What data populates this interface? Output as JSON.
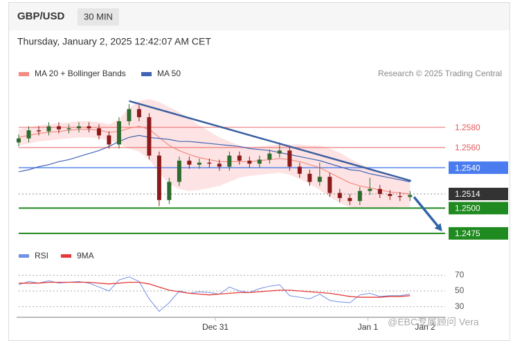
{
  "header": {
    "title": "GBP/USD",
    "timeframe": "30 MIN",
    "date": "Thursday, January 2, 2025 12:42:07 AM CET",
    "credit": "Research © 2025 Trading Central",
    "watermark": "@EBC专属顾问 Vera"
  },
  "chart_data": [
    {
      "type": "candlestick",
      "up_color": "#2e6b2e",
      "down_color": "#8b1a1a",
      "open": [
        1.2565,
        1.2569,
        1.2577,
        1.2576,
        1.2581,
        1.2578,
        1.2579,
        1.2581,
        1.2579,
        1.2572,
        1.2563,
        1.2586,
        1.2598,
        1.259,
        1.2552,
        1.2508,
        1.2526,
        1.2547,
        1.2543,
        1.2545,
        1.2544,
        1.2541,
        1.2552,
        1.2547,
        1.2544,
        1.2548,
        1.2554,
        1.2557,
        1.2541,
        1.2534,
        1.2526,
        1.2531,
        1.2515,
        1.251,
        1.2507,
        1.2517,
        1.2519,
        1.2514,
        1.2512,
        1.2511
      ],
      "high": [
        1.2573,
        1.2581,
        1.2581,
        1.2585,
        1.2585,
        1.2583,
        1.2585,
        1.2585,
        1.2583,
        1.2576,
        1.259,
        1.2603,
        1.2602,
        1.2594,
        1.2556,
        1.253,
        1.2551,
        1.2551,
        1.2549,
        1.2549,
        1.2548,
        1.2556,
        1.2556,
        1.2551,
        1.2552,
        1.2558,
        1.2565,
        1.2561,
        1.2545,
        1.2538,
        1.2545,
        1.2535,
        1.2519,
        1.2514,
        1.2521,
        1.253,
        1.2523,
        1.2518,
        1.2516,
        1.2517
      ],
      "low": [
        1.2561,
        1.2565,
        1.2572,
        1.2572,
        1.2574,
        1.2574,
        1.2575,
        1.2575,
        1.2568,
        1.2559,
        1.2559,
        1.2582,
        1.2586,
        1.2548,
        1.2502,
        1.2504,
        1.2522,
        1.2539,
        1.2539,
        1.254,
        1.2537,
        1.2537,
        1.2543,
        1.254,
        1.254,
        1.2544,
        1.255,
        1.2537,
        1.253,
        1.2522,
        1.2522,
        1.2511,
        1.2506,
        1.2503,
        1.2503,
        1.2513,
        1.251,
        1.2508,
        1.2507,
        1.2507
      ],
      "close": [
        1.2569,
        1.2577,
        1.2576,
        1.2581,
        1.2578,
        1.2579,
        1.2581,
        1.2579,
        1.2572,
        1.2563,
        1.2586,
        1.2598,
        1.259,
        1.2552,
        1.2508,
        1.2526,
        1.2547,
        1.2543,
        1.2545,
        1.2544,
        1.2541,
        1.2552,
        1.2547,
        1.2544,
        1.2548,
        1.2554,
        1.2557,
        1.2541,
        1.2534,
        1.2526,
        1.2531,
        1.2515,
        1.251,
        1.2507,
        1.2517,
        1.2519,
        1.2514,
        1.2512,
        1.2511,
        1.2513
      ],
      "series": [
        {
          "name": "MA 20 + Bollinger Bands",
          "color": "#f28b82",
          "band_color": "#fde3e3",
          "values": [
            1.257,
            1.2572,
            1.2574,
            1.2575,
            1.2576,
            1.2577,
            1.2578,
            1.2578,
            1.2577,
            1.2575,
            1.2576,
            1.2579,
            1.2581,
            1.2578,
            1.257,
            1.2562,
            1.2557,
            1.2553,
            1.255,
            1.2548,
            1.2546,
            1.2546,
            1.2546,
            1.2546,
            1.2547,
            1.2548,
            1.2549,
            1.2548,
            1.2546,
            1.2543,
            1.254,
            1.2535,
            1.253,
            1.2525,
            1.2522,
            1.252,
            1.2518,
            1.2516,
            1.2515,
            1.2514
          ],
          "upper": [
            1.2578,
            1.258,
            1.2582,
            1.2583,
            1.2584,
            1.2585,
            1.2586,
            1.2586,
            1.2585,
            1.2583,
            1.2588,
            1.2599,
            1.2606,
            1.2608,
            1.2605,
            1.26,
            1.2595,
            1.2589,
            1.2582,
            1.2576,
            1.257,
            1.2566,
            1.2562,
            1.256,
            1.2561,
            1.2562,
            1.2563,
            1.2563,
            1.2563,
            1.2562,
            1.2562,
            1.2559,
            1.2555,
            1.2549,
            1.2544,
            1.254,
            1.2536,
            1.2532,
            1.2529,
            1.2527
          ],
          "lower": [
            1.2562,
            1.2564,
            1.2566,
            1.2567,
            1.2568,
            1.2569,
            1.257,
            1.257,
            1.2569,
            1.2567,
            1.2564,
            1.2559,
            1.2556,
            1.2548,
            1.2535,
            1.2524,
            1.2519,
            1.2517,
            1.2518,
            1.252,
            1.2522,
            1.2526,
            1.253,
            1.2532,
            1.2533,
            1.2534,
            1.2535,
            1.2533,
            1.2529,
            1.2524,
            1.2518,
            1.2511,
            1.2505,
            1.2501,
            1.25,
            1.25,
            1.25,
            1.25,
            1.2501,
            1.2501
          ]
        },
        {
          "name": "MA 50",
          "color": "#3f63b5",
          "values": [
            1.2536,
            1.2538,
            1.2541,
            1.2543,
            1.2546,
            1.2548,
            1.2551,
            1.2554,
            1.2557,
            1.2561,
            1.2566,
            1.257,
            1.2572,
            1.257,
            1.2569,
            1.2568,
            1.2566,
            1.2566,
            1.2565,
            1.2564,
            1.2563,
            1.2562,
            1.2561,
            1.2559,
            1.2558,
            1.2557,
            1.2555,
            1.2553,
            1.2551,
            1.2549,
            1.2547,
            1.2544,
            1.2541,
            1.2538,
            1.2537,
            1.2534,
            1.2532,
            1.253,
            1.2528,
            1.2526
          ]
        }
      ],
      "xlim": [
        0,
        42.5
      ],
      "ylim": [
        1.2466,
        1.261
      ],
      "levels": [
        {
          "value": 1.258,
          "label": "1.2580",
          "color": "#e8585a",
          "boxed": false,
          "dashed": false
        },
        {
          "value": 1.256,
          "label": "1.2560",
          "color": "#e8585a",
          "boxed": false,
          "dashed": false
        },
        {
          "value": 1.254,
          "label": "1.2540",
          "color": "#4a7cf0",
          "boxed": true,
          "dashed": false
        },
        {
          "value": 1.2514,
          "label": "1.2514",
          "color": "#333333",
          "boxed": true,
          "dashed": true
        },
        {
          "value": 1.25,
          "label": "1.2500",
          "color": "#1f8a1f",
          "boxed": true,
          "dashed": false
        },
        {
          "value": 1.2475,
          "label": "1.2475",
          "color": "#1f8a1f",
          "boxed": true,
          "dashed": false
        }
      ],
      "trendline": {
        "x": [
          11,
          39.1
        ],
        "y": [
          1.2606,
          1.2527
        ],
        "color": "#3a5fa0"
      },
      "arrow": {
        "x": [
          39.4,
          42.2
        ],
        "y": [
          1.2511,
          1.2477
        ],
        "color": "#2f64a8"
      }
    },
    {
      "type": "line",
      "series": [
        {
          "name": "RSI",
          "color": "#6f8fe8",
          "values": [
            58,
            62,
            60,
            63,
            60,
            61,
            62,
            60,
            55,
            50,
            64,
            68,
            62,
            40,
            24,
            35,
            50,
            47,
            49,
            48,
            46,
            55,
            50,
            48,
            53,
            56,
            58,
            44,
            42,
            40,
            46,
            38,
            36,
            35,
            45,
            47,
            43,
            44,
            44,
            46
          ]
        },
        {
          "name": "9MA",
          "color": "#e53935",
          "values": [
            60,
            60,
            60,
            61,
            61,
            61,
            61,
            61,
            60,
            59,
            60,
            61,
            61,
            59,
            55,
            51,
            49,
            47,
            46,
            45,
            46,
            47,
            48,
            48,
            49,
            50,
            51,
            51,
            50,
            49,
            48,
            47,
            45,
            43,
            42,
            42,
            42,
            43,
            43,
            44
          ]
        }
      ],
      "xlim": [
        0,
        42.5
      ],
      "ylim": [
        20,
        80
      ],
      "yticks": [
        30,
        50,
        70
      ],
      "xticks": [
        {
          "value": 19.6,
          "label": "Dec 31"
        },
        {
          "value": 34.8,
          "label": "Jan 1"
        },
        {
          "value": 40.5,
          "label": "Jan 2"
        }
      ]
    }
  ]
}
